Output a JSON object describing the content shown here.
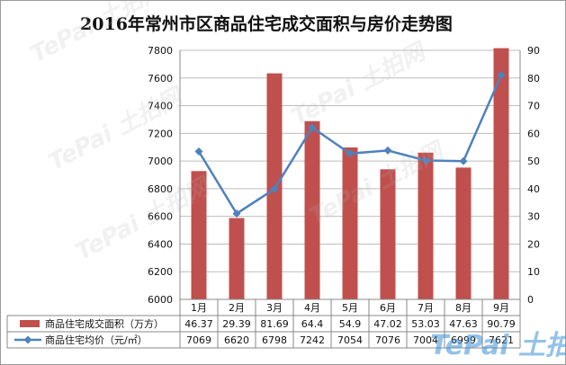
{
  "chart_data": {
    "type": "bar",
    "title": "2016年常州市区商品住宅成交面积与房价走势图",
    "categories": [
      "1月",
      "2月",
      "3月",
      "4月",
      "5月",
      "6月",
      "7月",
      "8月",
      "9月"
    ],
    "series": [
      {
        "name": "商品住宅成交面积（万方）",
        "kind": "bar",
        "axis": "right",
        "color": "#c0504d",
        "values": [
          46.37,
          29.39,
          81.69,
          64.4,
          54.9,
          47.02,
          53.03,
          47.63,
          90.79
        ],
        "labels": [
          "46.37",
          "29.39",
          "81.69",
          "64.4",
          "54.9",
          "47.02",
          "53.03",
          "47.63",
          "90.79"
        ]
      },
      {
        "name": "商品住宅均价（元/㎡）",
        "kind": "line",
        "axis": "left",
        "color": "#4f81bd",
        "values": [
          7069,
          6620,
          6798,
          7242,
          7054,
          7076,
          7004,
          6999,
          7621
        ],
        "labels": [
          "7069",
          "6620",
          "6798",
          "7242",
          "7054",
          "7076",
          "7004",
          "6999",
          "7621"
        ]
      }
    ],
    "y_left": {
      "min": 6000,
      "max": 7800,
      "step": 200
    },
    "y_right": {
      "min": 0,
      "max": 90,
      "step": 10
    },
    "grid": true,
    "legend": "data-table-below",
    "watermark": "TePai 土拍网"
  }
}
